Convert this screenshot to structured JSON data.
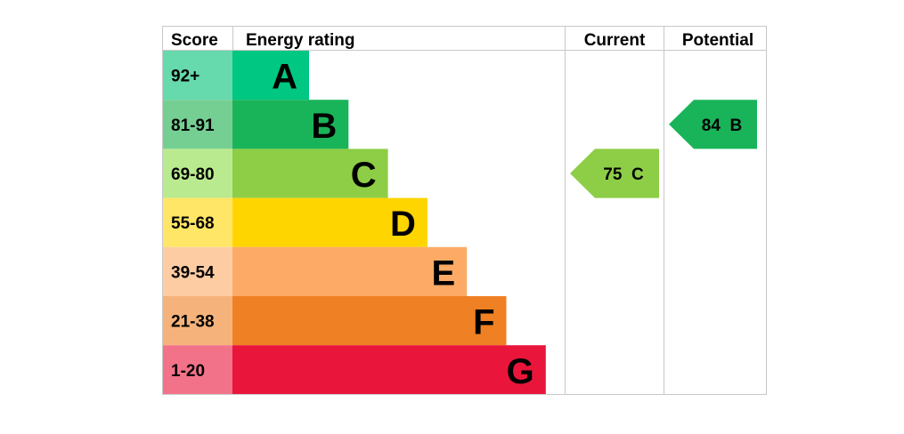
{
  "headers": {
    "score": "Score",
    "energy_rating": "Energy rating",
    "current": "Current",
    "potential": "Potential"
  },
  "chart_data": {
    "type": "bar",
    "bands": [
      {
        "letter": "A",
        "range": "92+",
        "color": "#00c781",
        "score_bg": "#66d9ad"
      },
      {
        "letter": "B",
        "range": "81-91",
        "color": "#19b459",
        "score_bg": "#75cf93"
      },
      {
        "letter": "C",
        "range": "69-80",
        "color": "#8dce46",
        "score_bg": "#baea90"
      },
      {
        "letter": "D",
        "range": "55-68",
        "color": "#ffd500",
        "score_bg": "#ffe666"
      },
      {
        "letter": "E",
        "range": "39-54",
        "color": "#fcaa65",
        "score_bg": "#fdcca3"
      },
      {
        "letter": "F",
        "range": "21-38",
        "color": "#ef8023",
        "score_bg": "#f5b37b"
      },
      {
        "letter": "G",
        "range": "1-20",
        "color": "#e9153b",
        "score_bg": "#f27389"
      }
    ],
    "current": {
      "value": 75,
      "letter": "C",
      "label": "75 C",
      "color": "#8dce46"
    },
    "potential": {
      "value": 84,
      "letter": "B",
      "label": "84 B",
      "color": "#19b459"
    }
  },
  "colors": {
    "grid_line": "#c8c8c8",
    "text": "#000000"
  }
}
